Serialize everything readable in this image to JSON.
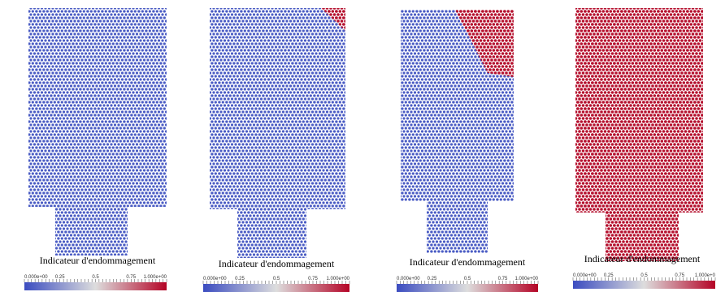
{
  "panels": [
    {
      "label": "Indicateur d'endommagement",
      "colorbar_ticks": [
        "0.000e+00",
        "0.25",
        "0.5",
        "0.75",
        "1.000e+00"
      ]
    },
    {
      "label": "Indicateur d'endommagement",
      "colorbar_ticks": [
        "0.000e+00",
        "0.25",
        "0.5",
        "0.75",
        "1.000e+00"
      ]
    },
    {
      "label": "Indicateur d'endommagement",
      "colorbar_ticks": [
        "0.000e+00",
        "0.25",
        "0.5",
        "0.75",
        "1.000e+00"
      ]
    },
    {
      "label": "Indicateur d'endommagement",
      "colorbar_ticks": [
        "0.000e+00",
        "0.25",
        "0.5",
        "0.75",
        "1.000e+0"
      ]
    }
  ]
}
